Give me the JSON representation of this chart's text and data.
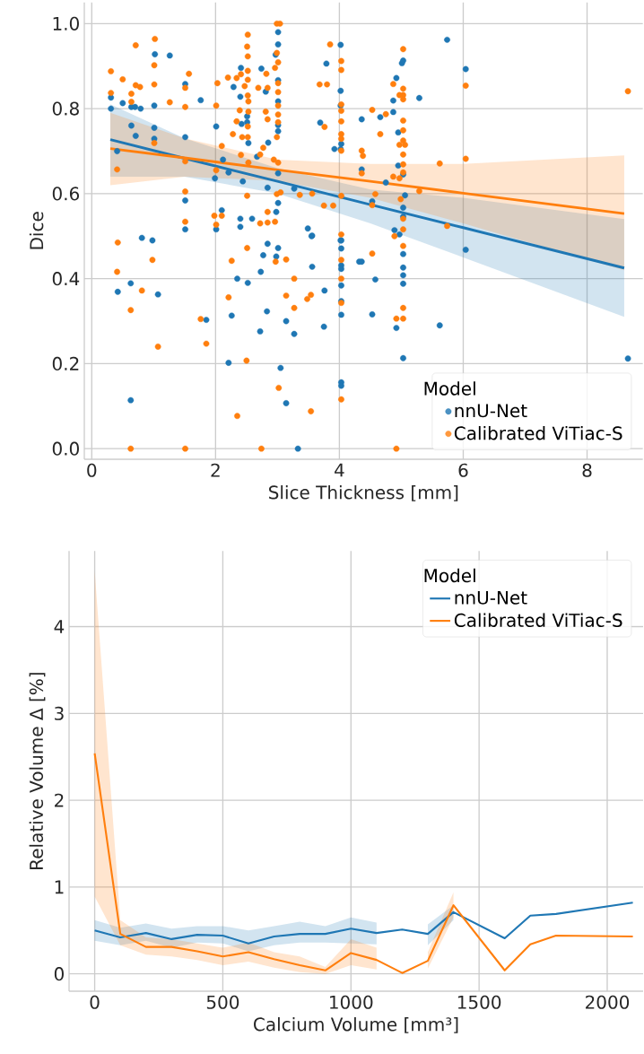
{
  "chart_data": [
    {
      "type": "scatter",
      "xlabel": "Slice Thickness [mm]",
      "ylabel": "Dice",
      "legend_title": "Model",
      "legend": "bottom right",
      "grid": true,
      "xlim": [
        -0.12,
        8.9
      ],
      "ylim": [
        -0.025,
        1.05
      ],
      "xticks": [
        0,
        2,
        4,
        6,
        8
      ],
      "yticks": [
        {
          "value": 0,
          "label": "0.0"
        },
        0.2,
        0.4,
        0.6,
        0.8,
        {
          "value": 1,
          "label": "1.0"
        }
      ],
      "series": [
        {
          "name": "nnU-Net",
          "color": "#1f77b4",
          "type": "scatter",
          "marker": "circle",
          "x": [
            0.31,
            0.31,
            0.41,
            0.5,
            0.64,
            0.7,
            0.79,
            0.64,
            0.71,
            1.02,
            1.26,
            1.01,
            1.01,
            1.01,
            1.51,
            1.51,
            1.76,
            2.01,
            2.29,
            2.4,
            2.41,
            2.42,
            2.51,
            2.51,
            2.44,
            2.21,
            2.12,
            1.99,
            2.74,
            2.81,
            2.85,
            2.84,
            2.53,
            2.67,
            3.01,
            3.01,
            3.01,
            3.01,
            3.01,
            3.01,
            2.97,
            3.01,
            3.01,
            2.98,
            3.27,
            4.02,
            4.02,
            4.02,
            3.79,
            3.69,
            3.92,
            4.02,
            4.03,
            1.51,
            1.51,
            2.01,
            2.1,
            2.4,
            2.4,
            2.59,
            3.49,
            3.56,
            4.02,
            0.81,
            0.98,
            0.42,
            0.63,
            1.07,
            1.85,
            0.63,
            2.84,
            3.01,
            2.77,
            2.98,
            2.73,
            2.35,
            2.52,
            2.26,
            2.83,
            3.14,
            3.27,
            2.72,
            3.55,
            3.56,
            3.76,
            3.75,
            2.21,
            3.05,
            3.14,
            3.33,
            4.03,
            4.03,
            4.03,
            4.03,
            4.03,
            4.03,
            4.03,
            4.03,
            4.03,
            4.32,
            5.74,
            6.04,
            5.29,
            4.87,
            4.87,
            4.36,
            4.66,
            4.92,
            5.01,
            5.03,
            4.95,
            4.95,
            5.03,
            5.06,
            5.03,
            5.03,
            4.36,
            4.75,
            4.53,
            4.89,
            4.97,
            5.03,
            5.03,
            5.03,
            5.03,
            4.36,
            4.58,
            4.53,
            4.92,
            5.62,
            6.04,
            5.03,
            8.66
          ],
          "values": [
            0.826,
            0.8,
            0.7,
            0.813,
            0.804,
            0.804,
            0.8,
            0.76,
            0.736,
            0.928,
            0.925,
            0.807,
            0.755,
            0.729,
            0.858,
            0.733,
            0.82,
            0.758,
            0.851,
            0.828,
            0.896,
            0.764,
            0.782,
            0.768,
            0.629,
            0.65,
            0.68,
            0.636,
            0.894,
            0.84,
            0.72,
            0.614,
            0.719,
            0.687,
            0.98,
            0.951,
            0.867,
            0.817,
            0.761,
            0.747,
            0.927,
            0.648,
            0.578,
            0.557,
            0.612,
            0.95,
            0.842,
            0.807,
            0.906,
            0.767,
            0.705,
            0.705,
            0.717,
            0.584,
            0.516,
            0.516,
            0.561,
            0.541,
            0.522,
            0.541,
            0.518,
            0.501,
            0.49,
            0.496,
            0.49,
            0.369,
            0.389,
            0.363,
            0.303,
            0.114,
            0.482,
            0.472,
            0.455,
            0.452,
            0.416,
            0.4,
            0.39,
            0.313,
            0.323,
            0.3,
            0.27,
            0.276,
            0.5,
            0.428,
            0.372,
            0.287,
            0.202,
            0.19,
            0.107,
            0.0,
            0.49,
            0.471,
            0.431,
            0.423,
            0.384,
            0.347,
            0.315,
            0.156,
            0.148,
            0.44,
            0.962,
            0.893,
            0.825,
            0.819,
            0.792,
            0.775,
            0.78,
            0.872,
            0.907,
            0.913,
            0.744,
            0.666,
            0.645,
            0.596,
            0.567,
            0.546,
            0.657,
            0.626,
            0.582,
            0.514,
            0.504,
            0.458,
            0.426,
            0.408,
            0.388,
            0.44,
            0.398,
            0.316,
            0.284,
            0.29,
            0.468,
            0.213,
            0.212
          ]
        },
        {
          "name": "Calibrated ViTiac-S",
          "color": "#ff7f0e",
          "type": "scatter",
          "marker": "circle",
          "x": [
            0.31,
            0.31,
            0.5,
            0.71,
            0.64,
            0.71,
            0.78,
            0.64,
            1.02,
            1.01,
            1.01,
            1.26,
            1.57,
            1.51,
            1.51,
            1.01,
            0.41,
            1.51,
            1.51,
            1.51,
            2.03,
            2.01,
            2.2,
            2.34,
            2.41,
            2.52,
            2.51,
            2.52,
            2.52,
            2.52,
            2.47,
            2.52,
            2.53,
            2.53,
            2.39,
            2.34,
            2.52,
            2.52,
            2.43,
            2.28,
            2.1,
            2.41,
            2.53,
            2.72,
            2.77,
            2.81,
            2.84,
            2.69,
            2.84,
            2.82,
            2.99,
            3.04,
            2.99,
            3.01,
            2.96,
            3.01,
            3.01,
            3.01,
            3.01,
            3.01,
            2.99,
            2.94,
            3.01,
            2.99,
            3.05,
            2.51,
            2.01,
            2.1,
            1.98,
            2.01,
            2.84,
            2.72,
            2.84,
            2.96,
            3.36,
            3.56,
            3.75,
            3.9,
            3.68,
            3.8,
            3.85,
            4.03,
            4.03,
            4.03,
            4.03,
            4.03,
            4.03,
            4.03,
            4.03,
            3.76,
            4.03,
            4.03,
            0.42,
            0.41,
            0.98,
            0.81,
            0.63,
            1.07,
            1.76,
            1.85,
            0.63,
            1.51,
            2.74,
            2.51,
            2.26,
            2.97,
            3.14,
            3.27,
            2.21,
            3.14,
            3.27,
            3.48,
            3.54,
            2.5,
            3.02,
            2.35,
            3.54,
            4.03,
            4.03,
            4.03,
            4.03,
            5.03,
            4.87,
            5.03,
            5.03,
            4.97,
            5.03,
            4.53,
            4.75,
            5.03,
            5.03,
            4.66,
            5.03,
            4.97,
            5.06,
            5.03,
            4.36,
            4.38,
            5.03,
            4.36,
            5.03,
            4.87,
            4.97,
            5.62,
            6.04,
            5.29,
            4.58,
            4.53,
            4.99,
            5.03,
            5.03,
            5.74,
            4.89,
            5.03,
            4.53,
            5.03,
            4.92,
            5.03,
            8.66,
            6.04,
            4.92
          ],
          "values": [
            0.888,
            0.837,
            0.869,
            0.949,
            0.835,
            0.855,
            0.851,
            0.816,
            0.964,
            0.902,
            0.857,
            0.815,
            0.882,
            0.849,
            0.804,
            0.719,
            0.657,
            0.676,
            0.605,
            0.534,
            0.86,
            0.807,
            0.873,
            0.872,
            0.881,
            0.974,
            0.946,
            0.923,
            0.889,
            0.868,
            0.853,
            0.831,
            0.817,
            0.793,
            0.796,
            0.77,
            0.758,
            0.733,
            0.733,
            0.74,
            0.712,
            0.691,
            0.673,
            0.692,
            0.708,
            0.793,
            0.775,
            0.849,
            0.849,
            0.882,
            1.0,
            1.0,
            0.931,
            0.909,
            0.896,
            0.86,
            0.839,
            0.807,
            0.786,
            0.768,
            0.733,
            0.68,
            0.673,
            0.599,
            0.603,
            0.595,
            0.655,
            0.548,
            0.548,
            0.527,
            0.557,
            0.53,
            0.532,
            0.534,
            0.597,
            0.6,
            0.572,
            0.572,
            0.857,
            0.857,
            0.951,
            0.912,
            0.891,
            0.81,
            0.795,
            0.77,
            0.74,
            0.729,
            0.701,
            0.757,
            0.595,
            0.504,
            0.485,
            0.416,
            0.444,
            0.372,
            0.326,
            0.24,
            0.305,
            0.247,
            0.0,
            0.0,
            0.0,
            0.472,
            0.442,
            0.44,
            0.445,
            0.4,
            0.356,
            0.36,
            0.331,
            0.352,
            0.362,
            0.207,
            0.143,
            0.077,
            0.088,
            0.444,
            0.4,
            0.343,
            0.116,
            0.94,
            0.858,
            0.847,
            0.832,
            0.832,
            0.822,
            0.797,
            0.787,
            0.772,
            0.749,
            0.74,
            0.725,
            0.715,
            0.715,
            0.692,
            0.701,
            0.689,
            0.669,
            0.648,
            0.65,
            0.64,
            0.636,
            0.671,
            0.682,
            0.606,
            0.599,
            0.573,
            0.587,
            0.541,
            0.516,
            0.524,
            0.5,
            0.477,
            0.459,
            0.331,
            0.306,
            0.306,
            0.841,
            0.854,
            0.0
          ]
        },
        {
          "type": "line",
          "color": "#1f77b4",
          "x": [
            0.3,
            1.5,
            3,
            4.5,
            6,
            8.6
          ],
          "values": [
            0.727,
            0.683,
            0.629,
            0.574,
            0.52,
            0.425
          ],
          "lower": [
            0.64,
            0.64,
            0.6,
            0.53,
            0.45,
            0.31
          ],
          "upper": [
            0.81,
            0.73,
            0.66,
            0.61,
            0.59,
            0.54
          ]
        },
        {
          "type": "line",
          "color": "#ff7f0e",
          "x": [
            0.3,
            1.5,
            3,
            4.5,
            6,
            8.6
          ],
          "values": [
            0.706,
            0.684,
            0.656,
            0.629,
            0.601,
            0.553
          ],
          "lower": [
            0.62,
            0.64,
            0.63,
            0.59,
            0.53,
            0.42
          ],
          "upper": [
            0.79,
            0.73,
            0.68,
            0.67,
            0.67,
            0.69
          ]
        }
      ]
    },
    {
      "type": "line",
      "xlabel": "Calcium Volume [mm³]",
      "ylabel": "Relative Volume Δ [%]",
      "legend_title": "Model",
      "legend": "top right",
      "grid": true,
      "xlim": [
        -100,
        2140
      ],
      "ylim": [
        -0.2,
        4.87
      ],
      "xticks": [
        0,
        500,
        1000,
        1500,
        2000
      ],
      "yticks": [
        0,
        1,
        2,
        3,
        4
      ],
      "series": [
        {
          "name": "nnU-Net",
          "color": "#1f77b4",
          "x": [
            0,
            100,
            200,
            300,
            400,
            500,
            600,
            700,
            800,
            900,
            1000,
            1100,
            1200,
            1300,
            1400,
            1600,
            1700,
            1800,
            2100
          ],
          "values": [
            0.5,
            0.42,
            0.47,
            0.4,
            0.45,
            0.44,
            0.35,
            0.43,
            0.46,
            0.46,
            0.52,
            0.47,
            0.51,
            0.46,
            0.71,
            0.41,
            0.67,
            0.69,
            0.82
          ],
          "lower": [
            0.38,
            0.33,
            0.38,
            0.3,
            0.36,
            0.35,
            0.26,
            0.33,
            0.36,
            0.36,
            0.35,
            0.34,
            null,
            0.33,
            0.62,
            null,
            null,
            null,
            null
          ],
          "upper": [
            0.62,
            0.53,
            0.58,
            0.52,
            0.55,
            0.55,
            0.5,
            0.55,
            0.6,
            0.55,
            0.65,
            0.59,
            null,
            0.57,
            0.79,
            null,
            null,
            null,
            null
          ]
        },
        {
          "name": "Calibrated ViTiac-S",
          "color": "#ff7f0e",
          "x": [
            0,
            100,
            200,
            300,
            400,
            500,
            600,
            700,
            800,
            900,
            1000,
            1100,
            1200,
            1300,
            1400,
            1600,
            1700,
            1800,
            2100
          ],
          "values": [
            2.54,
            0.46,
            0.31,
            0.31,
            0.26,
            0.2,
            0.25,
            0.17,
            0.1,
            0.04,
            0.24,
            0.16,
            0.01,
            0.15,
            0.79,
            0.04,
            0.34,
            0.44,
            0.43
          ],
          "lower": [
            0.89,
            0.33,
            0.22,
            0.2,
            0.16,
            0.1,
            0.14,
            0.07,
            0.02,
            0.0,
            0.1,
            0.05,
            null,
            0.06,
            0.65,
            null,
            null,
            null,
            null
          ],
          "upper": [
            4.64,
            0.62,
            0.42,
            0.4,
            0.35,
            0.3,
            0.36,
            0.25,
            0.2,
            0.08,
            0.4,
            0.3,
            null,
            0.25,
            0.94,
            null,
            null,
            null,
            null
          ]
        }
      ]
    }
  ]
}
